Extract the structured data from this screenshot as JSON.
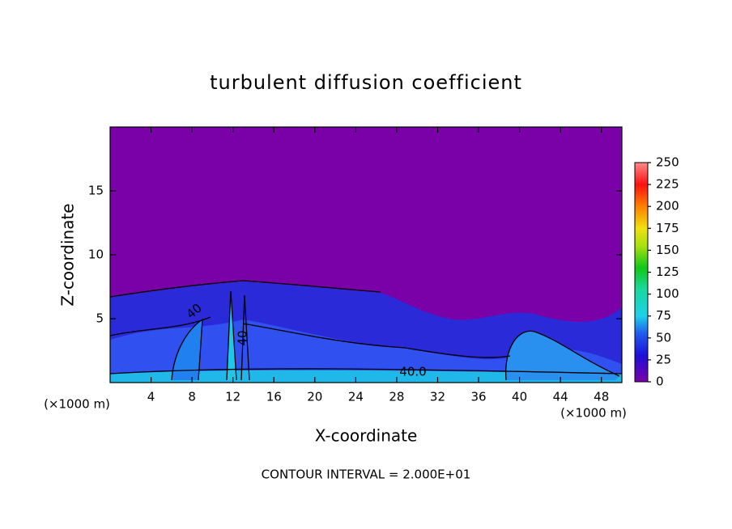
{
  "chart_data": {
    "type": "contour",
    "title": "turbulent diffusion coefficient",
    "x_label": "X-coordinate",
    "y_label": "Z-coordinate",
    "x_unit": "(×1000 m)",
    "footnote": "CONTOUR INTERVAL = 2.000E+01",
    "contour_labels": [
      "40.0",
      "40",
      "40"
    ],
    "xlim": [
      0,
      50
    ],
    "xticks": [
      4,
      8,
      12,
      16,
      20,
      24,
      28,
      32,
      36,
      40,
      44,
      48
    ],
    "ylim": [
      0,
      20
    ],
    "yticks": [
      5,
      10,
      15
    ],
    "clim": [
      0,
      250
    ],
    "cticks": [
      0,
      25,
      50,
      75,
      100,
      125,
      150,
      175,
      200,
      225,
      250
    ]
  }
}
